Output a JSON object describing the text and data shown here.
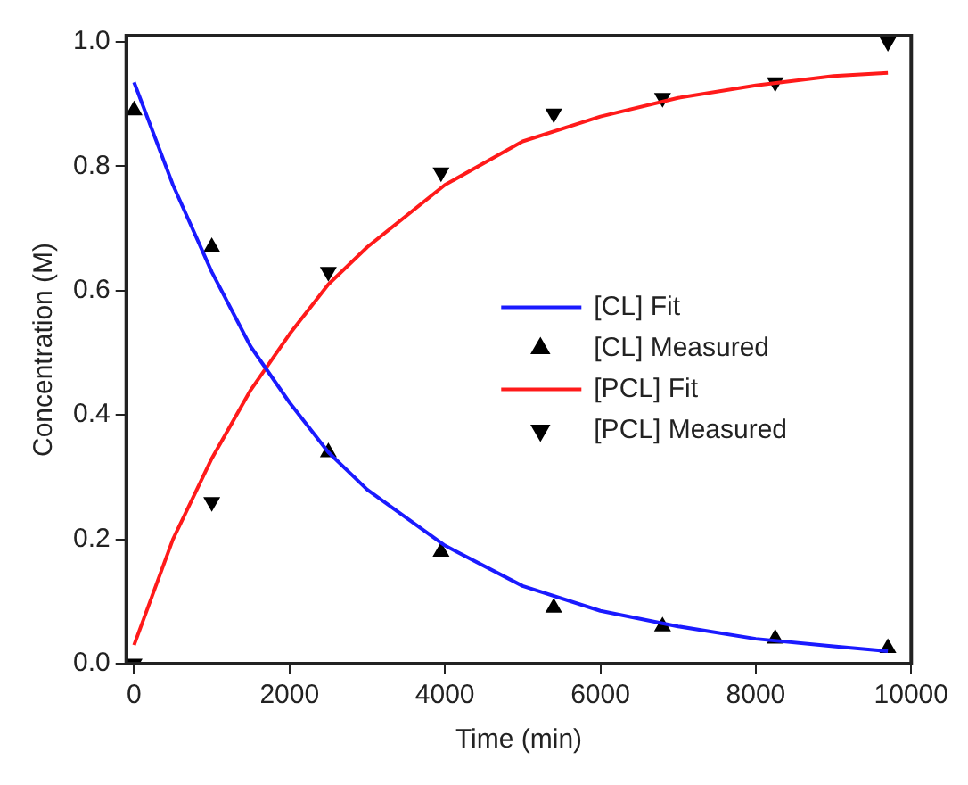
{
  "chart_data": {
    "type": "scatter",
    "xlabel": "Time (min)",
    "ylabel": "Concentration (M)",
    "xlim": [
      -100,
      10000
    ],
    "xticks": [
      0,
      2000,
      4000,
      6000,
      8000,
      10000
    ],
    "ylim": [
      0,
      1.01
    ],
    "yticks": [
      {
        "value": 0,
        "label": "0.0"
      },
      {
        "value": 0.2,
        "label": "0.2"
      },
      {
        "value": 0.4,
        "label": "0.4"
      },
      {
        "value": 0.6,
        "label": "0.6"
      },
      {
        "value": 0.8,
        "label": "0.8"
      },
      {
        "value": 1,
        "label": "1.0"
      }
    ],
    "grid": false,
    "legend": "right",
    "series": [
      {
        "name": "[CL] Fit",
        "type": "line",
        "color": "#1a1aff",
        "marker": "none",
        "line_style": "solid",
        "x": [
          0,
          500,
          1000,
          1500,
          2000,
          2500,
          3000,
          4000,
          5000,
          6000,
          7000,
          8000,
          9000,
          9700
        ],
        "values": [
          0.935,
          0.77,
          0.63,
          0.51,
          0.42,
          0.34,
          0.28,
          0.19,
          0.125,
          0.085,
          0.06,
          0.04,
          0.028,
          0.02
        ]
      },
      {
        "name": "[CL] Measured",
        "color": "#000000",
        "marker": "triangle",
        "x": [
          0,
          1000,
          2500,
          3950,
          5400,
          6800,
          8250,
          9700
        ],
        "values": [
          0.89,
          0.67,
          0.34,
          0.18,
          0.09,
          0.06,
          0.04,
          0.025
        ]
      },
      {
        "name": "[PCL] Fit",
        "type": "line",
        "color": "#ff1a1a",
        "marker": "none",
        "line_style": "solid",
        "x": [
          0,
          500,
          1000,
          1500,
          2000,
          2500,
          3000,
          4000,
          5000,
          6000,
          7000,
          8000,
          9000,
          9700
        ],
        "values": [
          0.03,
          0.2,
          0.33,
          0.44,
          0.53,
          0.61,
          0.67,
          0.77,
          0.84,
          0.88,
          0.91,
          0.93,
          0.945,
          0.95
        ]
      },
      {
        "name": "[PCL] Measured",
        "color": "#000000",
        "marker": "triangle-down",
        "x": [
          0,
          1000,
          2500,
          3950,
          5400,
          6800,
          8250,
          9700
        ],
        "values": [
          0,
          0.26,
          0.63,
          0.79,
          0.885,
          0.91,
          0.935,
          1.0
        ]
      }
    ]
  }
}
